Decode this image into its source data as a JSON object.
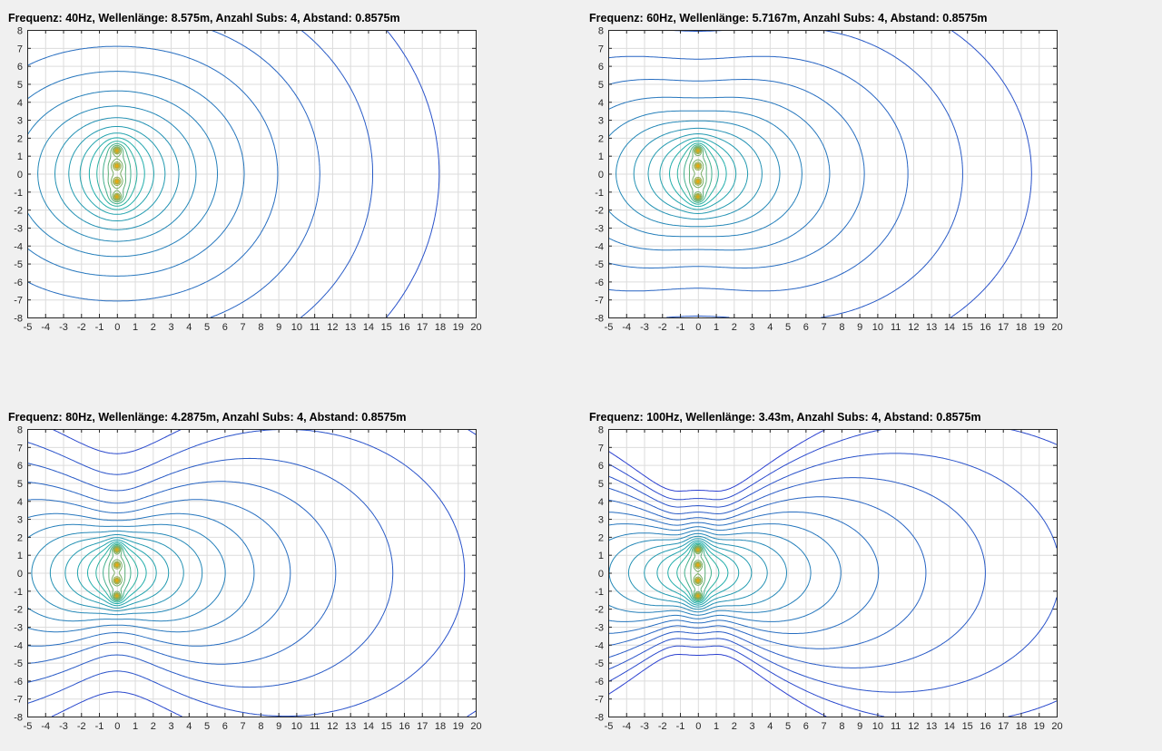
{
  "window": {
    "background": "#f0f0f0"
  },
  "colors": {
    "axes_background": "#ffffff",
    "grid": "#dcdcdc",
    "axis_box": "#262626",
    "contour_far": "#2a3fd0",
    "contour_mid": "#20b2a8",
    "contour_near": "#f6a600"
  },
  "chart_data": [
    {
      "type": "contour",
      "title": "Frequenz: 40Hz,  Wellenlänge: 8.575m,  Anzahl Subs: 4,  Abstand: 0.8575m",
      "frequency_hz": 40,
      "wavelength_m": 8.575,
      "subs": 4,
      "spacing_m": 0.8575,
      "xlim": [
        -5,
        20
      ],
      "ylim": [
        -8,
        8
      ],
      "xticks": [
        "-5",
        "-4",
        "-3",
        "-2",
        "-1",
        "0",
        "1",
        "2",
        "3",
        "4",
        "5",
        "6",
        "7",
        "8",
        "9",
        "10",
        "11",
        "12",
        "13",
        "14",
        "15",
        "16",
        "17",
        "18",
        "19",
        "20"
      ],
      "yticks": [
        "8",
        "7",
        "6",
        "5",
        "4",
        "3",
        "2",
        "1",
        "0",
        "-1",
        "-2",
        "-3",
        "-4",
        "-5",
        "-6",
        "-7",
        "-8"
      ],
      "grid": true,
      "sources_y": [
        -1.286,
        -0.429,
        0.429,
        1.286
      ]
    },
    {
      "type": "contour",
      "title": "Frequenz: 60Hz,  Wellenlänge: 5.7167m,  Anzahl Subs: 4,  Abstand: 0.8575m",
      "frequency_hz": 60,
      "wavelength_m": 5.7167,
      "subs": 4,
      "spacing_m": 0.8575,
      "xlim": [
        -5,
        20
      ],
      "ylim": [
        -8,
        8
      ],
      "xticks": [
        "-5",
        "-4",
        "-3",
        "-2",
        "-1",
        "0",
        "1",
        "2",
        "3",
        "4",
        "5",
        "6",
        "7",
        "8",
        "9",
        "10",
        "11",
        "12",
        "13",
        "14",
        "15",
        "16",
        "17",
        "18",
        "19",
        "20"
      ],
      "yticks": [
        "8",
        "7",
        "6",
        "5",
        "4",
        "3",
        "2",
        "1",
        "0",
        "-1",
        "-2",
        "-3",
        "-4",
        "-5",
        "-6",
        "-7",
        "-8"
      ],
      "grid": true,
      "sources_y": [
        -1.286,
        -0.429,
        0.429,
        1.286
      ]
    },
    {
      "type": "contour",
      "title": "Frequenz: 80Hz,  Wellenlänge: 4.2875m,  Anzahl Subs: 4,  Abstand: 0.8575m",
      "frequency_hz": 80,
      "wavelength_m": 4.2875,
      "subs": 4,
      "spacing_m": 0.8575,
      "xlim": [
        -5,
        20
      ],
      "ylim": [
        -8,
        8
      ],
      "xticks": [
        "-5",
        "-4",
        "-3",
        "-2",
        "-1",
        "0",
        "1",
        "2",
        "3",
        "4",
        "5",
        "6",
        "7",
        "8",
        "9",
        "10",
        "11",
        "12",
        "13",
        "14",
        "15",
        "16",
        "17",
        "18",
        "19",
        "20"
      ],
      "yticks": [
        "8",
        "7",
        "6",
        "5",
        "4",
        "3",
        "2",
        "1",
        "0",
        "-1",
        "-2",
        "-3",
        "-4",
        "-5",
        "-6",
        "-7",
        "-8"
      ],
      "grid": true,
      "sources_y": [
        -1.286,
        -0.429,
        0.429,
        1.286
      ]
    },
    {
      "type": "contour",
      "title": "Frequenz: 100Hz,  Wellenlänge: 3.43m,  Anzahl Subs: 4,  Abstand: 0.8575m",
      "frequency_hz": 100,
      "wavelength_m": 3.43,
      "subs": 4,
      "spacing_m": 0.8575,
      "xlim": [
        -5,
        20
      ],
      "ylim": [
        -8,
        8
      ],
      "xticks": [
        "-5",
        "-4",
        "-3",
        "-2",
        "-1",
        "0",
        "1",
        "2",
        "3",
        "4",
        "5",
        "6",
        "7",
        "8",
        "9",
        "10",
        "11",
        "12",
        "13",
        "14",
        "15",
        "16",
        "17",
        "18",
        "19",
        "20"
      ],
      "yticks": [
        "8",
        "7",
        "6",
        "5",
        "4",
        "3",
        "2",
        "1",
        "0",
        "-1",
        "-2",
        "-3",
        "-4",
        "-5",
        "-6",
        "-7",
        "-8"
      ],
      "grid": true,
      "sources_y": [
        -1.286,
        -0.429,
        0.429,
        1.286
      ]
    }
  ]
}
